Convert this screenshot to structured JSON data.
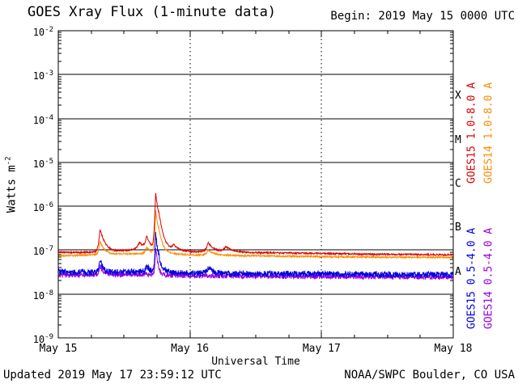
{
  "header": {
    "title": "GOES Xray Flux (1-minute data)",
    "begin_label": "Begin: 2019 May 15 0000 UTC"
  },
  "axes": {
    "ylabel_base": "Watts m",
    "ylabel_exp": "-2"
  },
  "footer": {
    "xlabel": "Universal Time",
    "updated": "Updated 2019 May 17 23:59:12 UTC",
    "credit": "NOAA/SWPC Boulder, CO USA"
  },
  "chart_data": {
    "type": "line",
    "title": "GOES Xray Flux (1-minute data)",
    "xlabel": "Universal Time",
    "ylabel": "Watts m^-2",
    "x_unit": "hours since 2019 May 15 0000 UTC",
    "x_range": [
      0,
      72
    ],
    "ylim": [
      1e-09,
      0.01
    ],
    "y_scale": "log",
    "y_tick_exponents": [
      -2,
      -3,
      -4,
      -5,
      -6,
      -7,
      -8,
      -9
    ],
    "grid_exponents": [
      -3,
      -4,
      -5,
      -6,
      -7,
      -8
    ],
    "x_tick_hours": [
      0,
      24,
      48,
      72
    ],
    "x_tick_labels": [
      "May 15",
      "May 16",
      "May 17",
      "May 18"
    ],
    "day_boundary_hours": [
      24,
      48
    ],
    "flare_classes": [
      {
        "letter": "X",
        "mid_exponent": -3.5
      },
      {
        "letter": "M",
        "mid_exponent": -4.5
      },
      {
        "letter": "C",
        "mid_exponent": -5.5
      },
      {
        "letter": "B",
        "mid_exponent": -6.5
      },
      {
        "letter": "A",
        "mid_exponent": -7.5
      }
    ],
    "series": [
      {
        "name": "GOES15 1.0-8.0 A",
        "color": "#dd0000",
        "noise": 0.04,
        "baseline_wm2": [
          [
            0,
            9e-08
          ],
          [
            4,
            8.8e-08
          ],
          [
            8,
            9.2e-08
          ],
          [
            12,
            9.8e-08
          ],
          [
            16,
            1e-07
          ],
          [
            20,
            1e-07
          ],
          [
            24,
            9.3e-08
          ],
          [
            30,
            9e-08
          ],
          [
            36,
            8.8e-08
          ],
          [
            42,
            8.6e-08
          ],
          [
            48,
            8.4e-08
          ],
          [
            54,
            8.2e-08
          ],
          [
            60,
            8e-08
          ],
          [
            66,
            7.9e-08
          ],
          [
            72,
            7.8e-08
          ]
        ],
        "spikes": [
          [
            7.6,
            3e-07,
            0.2,
            0.7
          ],
          [
            14.8,
            1.5e-07,
            0.5,
            1.0
          ],
          [
            16.1,
            2e-07,
            0.25,
            0.6
          ],
          [
            17.75,
            2e-06,
            0.12,
            0.4
          ],
          [
            18.3,
            3e-07,
            0.15,
            0.8
          ],
          [
            21.0,
            1.3e-07,
            0.3,
            0.8
          ],
          [
            27.3,
            1.5e-07,
            0.3,
            1.0
          ],
          [
            30.5,
            1.2e-07,
            0.4,
            1.2
          ]
        ]
      },
      {
        "name": "GOES14 1.0-8.0 A",
        "color": "#ff8c00",
        "noise": 0.04,
        "baseline_wm2": [
          [
            0,
            7.4e-08
          ],
          [
            12,
            8.2e-08
          ],
          [
            20,
            8.3e-08
          ],
          [
            24,
            7.8e-08
          ],
          [
            36,
            7.4e-08
          ],
          [
            48,
            7.1e-08
          ],
          [
            60,
            6.9e-08
          ],
          [
            72,
            6.8e-08
          ]
        ],
        "spikes": [
          [
            7.6,
            1.6e-07,
            0.2,
            0.7
          ],
          [
            16.1,
            1.2e-07,
            0.25,
            0.6
          ],
          [
            17.75,
            8e-07,
            0.12,
            0.4
          ],
          [
            18.3,
            1.5e-07,
            0.15,
            0.8
          ],
          [
            27.3,
            1e-07,
            0.3,
            1.0
          ]
        ]
      },
      {
        "name": "GOES15 0.5-4.0 A",
        "color": "#0000dd",
        "noise": 0.16,
        "baseline_wm2": [
          [
            0,
            3.2e-08
          ],
          [
            8,
            3.1e-08
          ],
          [
            16,
            3.3e-08
          ],
          [
            24,
            3e-08
          ],
          [
            36,
            2.9e-08
          ],
          [
            48,
            2.9e-08
          ],
          [
            60,
            2.8e-08
          ],
          [
            72,
            2.8e-08
          ]
        ],
        "spikes": [
          [
            7.6,
            6e-08,
            0.2,
            0.5
          ],
          [
            16.1,
            4.5e-08,
            0.2,
            0.5
          ],
          [
            17.75,
            2.5e-07,
            0.1,
            0.3
          ],
          [
            18.3,
            5e-08,
            0.15,
            0.6
          ],
          [
            27.3,
            4e-08,
            0.3,
            0.8
          ]
        ]
      },
      {
        "name": "GOES14 0.5-4.0 A",
        "color": "#9900dd",
        "noise": 0.12,
        "baseline_wm2": [
          [
            0,
            2.7e-08
          ],
          [
            16,
            2.8e-08
          ],
          [
            24,
            2.6e-08
          ],
          [
            48,
            2.5e-08
          ],
          [
            72,
            2.4e-08
          ]
        ],
        "spikes": [
          [
            7.6,
            4.5e-08,
            0.2,
            0.5
          ],
          [
            17.75,
            1.2e-07,
            0.1,
            0.3
          ]
        ]
      }
    ]
  }
}
